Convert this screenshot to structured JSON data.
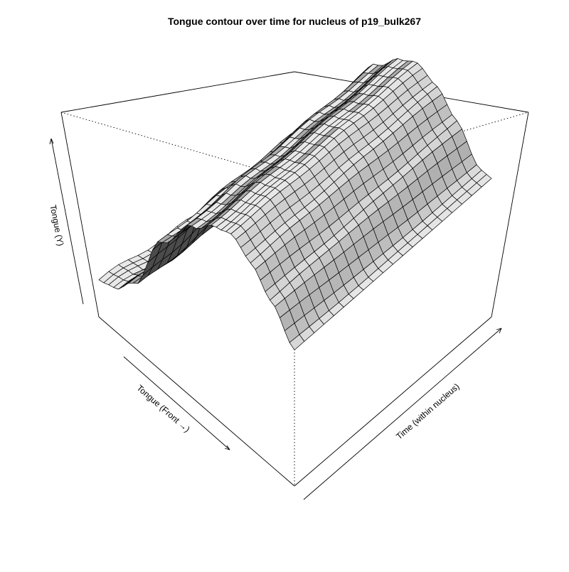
{
  "chart_data": {
    "type": "surface3d",
    "title": "Tongue contour over time for nucleus of p19_bulk267",
    "xlabel": "Tongue (Front →)",
    "ylabel": "Time (within nucleus)",
    "zlabel": "Tongue (Y)",
    "grid": false,
    "shading": "grayscale",
    "n_tongue_points": 41,
    "n_time_points": 21,
    "profile_control_points": {
      "front_fraction": [
        0.0,
        0.08,
        0.18,
        0.32,
        0.48,
        0.6,
        0.68,
        0.78,
        0.88,
        1.0
      ],
      "height_fraction": [
        0.18,
        0.2,
        0.3,
        0.62,
        0.83,
        0.93,
        0.96,
        0.9,
        0.8,
        0.66
      ]
    }
  }
}
